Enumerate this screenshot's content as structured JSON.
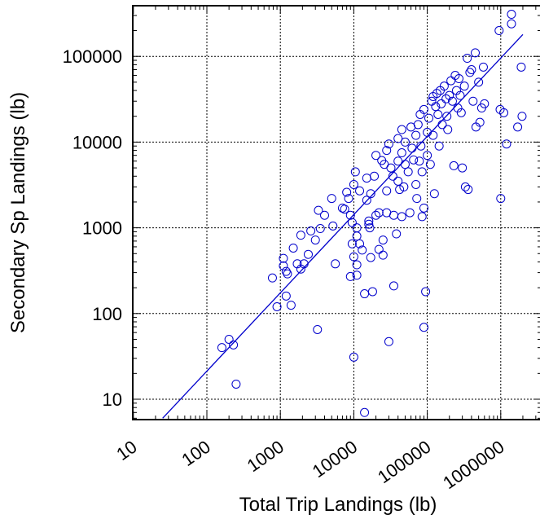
{
  "chart_data": {
    "type": "scatter",
    "xlabel": "Total Trip Landings (lb)",
    "ylabel": "Secondary Sp Landings (lb)",
    "xscale": "log",
    "yscale": "log",
    "xlim": [
      10,
      2000000
    ],
    "ylim": [
      6,
      400000
    ],
    "x_ticks": [
      10,
      100,
      1000,
      10000,
      100000,
      1000000
    ],
    "x_tick_labels": [
      "10",
      "100",
      "1000",
      "10000",
      "100000",
      "1000000"
    ],
    "y_ticks": [
      10,
      100,
      1000,
      10000,
      100000
    ],
    "y_tick_labels": [
      "10",
      "100",
      "1000",
      "10000",
      "100000"
    ],
    "grid": true,
    "colors": {
      "points": "#0000cc",
      "fit_line": "#0000cc",
      "grid": "#000000"
    },
    "fit_line": {
      "x": [
        25,
        2000000
      ],
      "y": [
        6,
        180000
      ]
    },
    "series": [
      {
        "marker": "open-circle",
        "points": [
          [
            160,
            40
          ],
          [
            200,
            50
          ],
          [
            230,
            43
          ],
          [
            250,
            15
          ],
          [
            780,
            260
          ],
          [
            900,
            120
          ],
          [
            1100,
            440
          ],
          [
            1100,
            360
          ],
          [
            1200,
            310
          ],
          [
            1200,
            160
          ],
          [
            1250,
            290
          ],
          [
            1400,
            125
          ],
          [
            1500,
            580
          ],
          [
            1700,
            380
          ],
          [
            1900,
            820
          ],
          [
            1900,
            330
          ],
          [
            2100,
            380
          ],
          [
            2400,
            490
          ],
          [
            2600,
            920
          ],
          [
            3000,
            720
          ],
          [
            3200,
            65
          ],
          [
            3300,
            1600
          ],
          [
            3500,
            980
          ],
          [
            4000,
            1400
          ],
          [
            5000,
            2200
          ],
          [
            5200,
            1050
          ],
          [
            5600,
            380
          ],
          [
            7000,
            1700
          ],
          [
            7500,
            1650
          ],
          [
            8000,
            2600
          ],
          [
            8500,
            2200
          ],
          [
            9000,
            1400
          ],
          [
            9000,
            270
          ],
          [
            9500,
            1150
          ],
          [
            9500,
            650
          ],
          [
            10000,
            3200
          ],
          [
            10000,
            460
          ],
          [
            10000,
            31
          ],
          [
            10500,
            4500
          ],
          [
            11000,
            1000
          ],
          [
            11000,
            800
          ],
          [
            11000,
            370
          ],
          [
            11000,
            280
          ],
          [
            12000,
            2700
          ],
          [
            12000,
            650
          ],
          [
            13000,
            550
          ],
          [
            14000,
            7
          ],
          [
            14000,
            170
          ],
          [
            15000,
            3800
          ],
          [
            15000,
            2100
          ],
          [
            16000,
            1200
          ],
          [
            16000,
            1100
          ],
          [
            16500,
            1000
          ],
          [
            17000,
            2500
          ],
          [
            17000,
            450
          ],
          [
            18000,
            180
          ],
          [
            19000,
            4000
          ],
          [
            20000,
            7000
          ],
          [
            20000,
            1400
          ],
          [
            22000,
            1500
          ],
          [
            22000,
            560
          ],
          [
            24000,
            6100
          ],
          [
            25000,
            720
          ],
          [
            25000,
            480
          ],
          [
            26000,
            5500
          ],
          [
            28000,
            8000
          ],
          [
            28000,
            2700
          ],
          [
            28000,
            1500
          ],
          [
            30000,
            9500
          ],
          [
            30000,
            47
          ],
          [
            32000,
            5000
          ],
          [
            34000,
            4000
          ],
          [
            35000,
            1400
          ],
          [
            35000,
            210
          ],
          [
            38000,
            850
          ],
          [
            40000,
            11000
          ],
          [
            40000,
            6000
          ],
          [
            40000,
            3500
          ],
          [
            42000,
            2800
          ],
          [
            45000,
            14000
          ],
          [
            45000,
            7500
          ],
          [
            45000,
            1350
          ],
          [
            48000,
            3000
          ],
          [
            50000,
            10000
          ],
          [
            50000,
            5500
          ],
          [
            55000,
            4500
          ],
          [
            58000,
            1500
          ],
          [
            60000,
            15000
          ],
          [
            62000,
            8500
          ],
          [
            65000,
            6200
          ],
          [
            70000,
            12000
          ],
          [
            70000,
            3200
          ],
          [
            72000,
            2200
          ],
          [
            75000,
            16000
          ],
          [
            78000,
            6000
          ],
          [
            80000,
            21000
          ],
          [
            82000,
            9000
          ],
          [
            85000,
            4500
          ],
          [
            85000,
            1350
          ],
          [
            90000,
            24000
          ],
          [
            90000,
            1700
          ],
          [
            90000,
            69
          ],
          [
            95000,
            180
          ],
          [
            100000,
            13000
          ],
          [
            100000,
            7000
          ],
          [
            105000,
            19000
          ],
          [
            110000,
            5500
          ],
          [
            115000,
            30000
          ],
          [
            120000,
            34000
          ],
          [
            120000,
            12000
          ],
          [
            125000,
            2500
          ],
          [
            130000,
            26000
          ],
          [
            135000,
            37000
          ],
          [
            140000,
            21000
          ],
          [
            145000,
            9000
          ],
          [
            150000,
            40000
          ],
          [
            155000,
            28000
          ],
          [
            160000,
            16000
          ],
          [
            170000,
            45000
          ],
          [
            180000,
            32000
          ],
          [
            185000,
            20000
          ],
          [
            190000,
            14000
          ],
          [
            200000,
            35000
          ],
          [
            210000,
            52000
          ],
          [
            220000,
            30000
          ],
          [
            230000,
            5300
          ],
          [
            240000,
            60000
          ],
          [
            250000,
            40000
          ],
          [
            260000,
            25000
          ],
          [
            270000,
            55000
          ],
          [
            280000,
            35000
          ],
          [
            290000,
            22000
          ],
          [
            300000,
            5000
          ],
          [
            320000,
            45000
          ],
          [
            330000,
            3000
          ],
          [
            350000,
            95000
          ],
          [
            360000,
            2800
          ],
          [
            380000,
            65000
          ],
          [
            400000,
            70000
          ],
          [
            420000,
            30000
          ],
          [
            450000,
            110000
          ],
          [
            460000,
            15000
          ],
          [
            500000,
            50000
          ],
          [
            520000,
            17000
          ],
          [
            550000,
            25000
          ],
          [
            580000,
            75000
          ],
          [
            600000,
            28000
          ],
          [
            950000,
            200000
          ],
          [
            980000,
            24000
          ],
          [
            1000000,
            2200
          ],
          [
            1100000,
            22000
          ],
          [
            1200000,
            9500
          ],
          [
            1400000,
            310000
          ],
          [
            1400000,
            240000
          ],
          [
            1700000,
            15000
          ],
          [
            1900000,
            75000
          ],
          [
            1950000,
            20000
          ]
        ]
      }
    ]
  }
}
